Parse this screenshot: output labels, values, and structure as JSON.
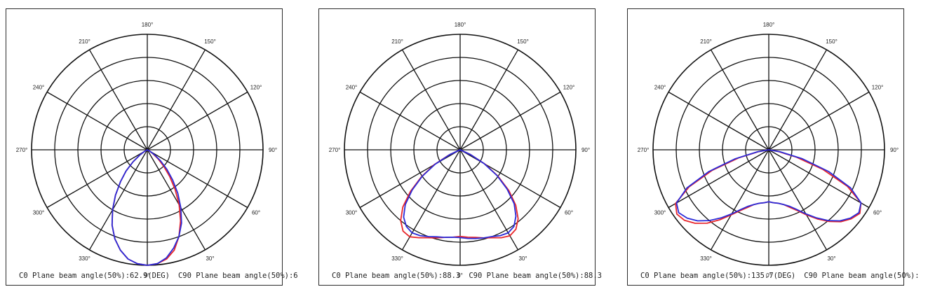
{
  "colors": {
    "c0": "#e8262b",
    "c90": "#2a2ad8",
    "grid": "#111111"
  },
  "angle_labels": [
    "0°",
    "30°",
    "60°",
    "90°",
    "120°",
    "150°",
    "180°",
    "210°",
    "240°",
    "270°",
    "300°",
    "330°"
  ],
  "charts": [
    {
      "caption_c0": "C0 Plane beam angle(50%):62.9(DEG)",
      "caption_c90": "C90 Plane beam angle(50%):6"
    },
    {
      "caption_c0": "C0 Plane beam angle(50%):88.3",
      "caption_c90": "C90 Plane beam angle(50%):88.3"
    },
    {
      "caption_c0": "C0 Plane beam angle(50%):135.7(DEG)",
      "caption_c90": "C90 Plane beam angle(50%):"
    }
  ],
  "chart_data": [
    {
      "type": "polar",
      "angle_ticks_deg": [
        0,
        30,
        60,
        90,
        120,
        150,
        180,
        210,
        240,
        270,
        300,
        330
      ],
      "rings": 5,
      "series": [
        {
          "id": "c0",
          "color": "#e8262b",
          "points": [
            [
              0,
              1.0
            ],
            [
              5,
              0.99
            ],
            [
              10,
              0.96
            ],
            [
              15,
              0.9
            ],
            [
              20,
              0.8
            ],
            [
              25,
              0.68
            ],
            [
              30,
              0.55
            ],
            [
              35,
              0.42
            ],
            [
              40,
              0.3
            ],
            [
              45,
              0.2
            ],
            [
              50,
              0.12
            ],
            [
              55,
              0.06
            ],
            [
              60,
              0.02
            ],
            [
              65,
              0.0
            ],
            [
              -5,
              0.99
            ],
            [
              -10,
              0.96
            ],
            [
              -15,
              0.9
            ],
            [
              -20,
              0.82
            ],
            [
              -25,
              0.72
            ],
            [
              -30,
              0.6
            ],
            [
              -35,
              0.48
            ],
            [
              -40,
              0.36
            ],
            [
              -45,
              0.26
            ],
            [
              -50,
              0.16
            ],
            [
              -55,
              0.08
            ],
            [
              -60,
              0.03
            ],
            [
              -65,
              0.0
            ]
          ]
        },
        {
          "id": "c90",
          "color": "#2a2ad8",
          "points": [
            [
              0,
              1.0
            ],
            [
              5,
              0.99
            ],
            [
              10,
              0.95
            ],
            [
              15,
              0.88
            ],
            [
              20,
              0.8
            ],
            [
              25,
              0.7
            ],
            [
              30,
              0.58
            ],
            [
              35,
              0.46
            ],
            [
              40,
              0.34
            ],
            [
              45,
              0.24
            ],
            [
              50,
              0.15
            ],
            [
              55,
              0.08
            ],
            [
              60,
              0.03
            ],
            [
              65,
              0.0
            ],
            [
              -5,
              0.99
            ],
            [
              -10,
              0.96
            ],
            [
              -15,
              0.9
            ],
            [
              -20,
              0.82
            ],
            [
              -25,
              0.72
            ],
            [
              -30,
              0.6
            ],
            [
              -35,
              0.48
            ],
            [
              -40,
              0.36
            ],
            [
              -45,
              0.26
            ],
            [
              -50,
              0.16
            ],
            [
              -55,
              0.08
            ],
            [
              -60,
              0.03
            ],
            [
              -65,
              0.0
            ]
          ]
        }
      ]
    },
    {
      "type": "polar",
      "angle_ticks_deg": [
        0,
        30,
        60,
        90,
        120,
        150,
        180,
        210,
        240,
        270,
        300,
        330
      ],
      "rings": 5,
      "series": [
        {
          "id": "c0",
          "color": "#e8262b",
          "points": [
            [
              0,
              0.75
            ],
            [
              5,
              0.76
            ],
            [
              10,
              0.77
            ],
            [
              15,
              0.79
            ],
            [
              20,
              0.81
            ],
            [
              25,
              0.84
            ],
            [
              30,
              0.86
            ],
            [
              35,
              0.84
            ],
            [
              40,
              0.78
            ],
            [
              45,
              0.68
            ],
            [
              50,
              0.55
            ],
            [
              55,
              0.4
            ],
            [
              60,
              0.25
            ],
            [
              65,
              0.1
            ],
            [
              70,
              0.0
            ],
            [
              -5,
              0.76
            ],
            [
              -10,
              0.77
            ],
            [
              -15,
              0.79
            ],
            [
              -20,
              0.81
            ],
            [
              -25,
              0.84
            ],
            [
              -30,
              0.87
            ],
            [
              -35,
              0.86
            ],
            [
              -40,
              0.8
            ],
            [
              -45,
              0.7
            ],
            [
              -50,
              0.56
            ],
            [
              -55,
              0.41
            ],
            [
              -60,
              0.26
            ],
            [
              -65,
              0.11
            ],
            [
              -70,
              0.0
            ]
          ]
        },
        {
          "id": "c90",
          "color": "#2a2ad8",
          "points": [
            [
              0,
              0.76
            ],
            [
              5,
              0.77
            ],
            [
              10,
              0.78
            ],
            [
              15,
              0.79
            ],
            [
              20,
              0.8
            ],
            [
              25,
              0.82
            ],
            [
              30,
              0.83
            ],
            [
              35,
              0.81
            ],
            [
              40,
              0.75
            ],
            [
              45,
              0.66
            ],
            [
              50,
              0.53
            ],
            [
              55,
              0.39
            ],
            [
              60,
              0.24
            ],
            [
              65,
              0.1
            ],
            [
              70,
              0.0
            ],
            [
              -5,
              0.76
            ],
            [
              -10,
              0.77
            ],
            [
              -15,
              0.78
            ],
            [
              -20,
              0.8
            ],
            [
              -25,
              0.82
            ],
            [
              -30,
              0.83
            ],
            [
              -35,
              0.81
            ],
            [
              -40,
              0.76
            ],
            [
              -45,
              0.67
            ],
            [
              -50,
              0.54
            ],
            [
              -55,
              0.4
            ],
            [
              -60,
              0.25
            ],
            [
              -65,
              0.1
            ],
            [
              -70,
              0.0
            ]
          ]
        }
      ]
    },
    {
      "type": "polar",
      "angle_ticks_deg": [
        0,
        30,
        60,
        90,
        120,
        150,
        180,
        210,
        240,
        270,
        300,
        330
      ],
      "rings": 5,
      "series": [
        {
          "id": "c0",
          "color": "#e8262b",
          "points": [
            [
              0,
              0.45
            ],
            [
              5,
              0.46
            ],
            [
              10,
              0.47
            ],
            [
              15,
              0.49
            ],
            [
              20,
              0.53
            ],
            [
              25,
              0.58
            ],
            [
              30,
              0.65
            ],
            [
              35,
              0.73
            ],
            [
              40,
              0.81
            ],
            [
              45,
              0.88
            ],
            [
              50,
              0.93
            ],
            [
              55,
              0.96
            ],
            [
              60,
              0.92
            ],
            [
              65,
              0.75
            ],
            [
              70,
              0.5
            ],
            [
              75,
              0.25
            ],
            [
              80,
              0.08
            ],
            [
              85,
              0.0
            ],
            [
              -5,
              0.46
            ],
            [
              -10,
              0.47
            ],
            [
              -15,
              0.49
            ],
            [
              -20,
              0.53
            ],
            [
              -25,
              0.58
            ],
            [
              -30,
              0.65
            ],
            [
              -35,
              0.74
            ],
            [
              -40,
              0.83
            ],
            [
              -45,
              0.9
            ],
            [
              -50,
              0.95
            ],
            [
              -55,
              0.97
            ],
            [
              -60,
              0.93
            ],
            [
              -65,
              0.76
            ],
            [
              -70,
              0.52
            ],
            [
              -75,
              0.27
            ],
            [
              -80,
              0.09
            ],
            [
              -85,
              0.0
            ]
          ]
        },
        {
          "id": "c90",
          "color": "#2a2ad8",
          "points": [
            [
              0,
              0.45
            ],
            [
              5,
              0.46
            ],
            [
              10,
              0.47
            ],
            [
              15,
              0.49
            ],
            [
              20,
              0.52
            ],
            [
              25,
              0.57
            ],
            [
              30,
              0.64
            ],
            [
              35,
              0.72
            ],
            [
              40,
              0.8
            ],
            [
              45,
              0.87
            ],
            [
              50,
              0.92
            ],
            [
              55,
              0.95
            ],
            [
              60,
              0.92
            ],
            [
              65,
              0.78
            ],
            [
              70,
              0.55
            ],
            [
              75,
              0.3
            ],
            [
              80,
              0.1
            ],
            [
              85,
              0.0
            ],
            [
              -5,
              0.46
            ],
            [
              -10,
              0.47
            ],
            [
              -15,
              0.49
            ],
            [
              -20,
              0.52
            ],
            [
              -25,
              0.57
            ],
            [
              -30,
              0.64
            ],
            [
              -35,
              0.72
            ],
            [
              -40,
              0.8
            ],
            [
              -45,
              0.87
            ],
            [
              -50,
              0.92
            ],
            [
              -55,
              0.95
            ],
            [
              -60,
              0.92
            ],
            [
              -65,
              0.78
            ],
            [
              -70,
              0.55
            ],
            [
              -75,
              0.3
            ],
            [
              -80,
              0.1
            ],
            [
              -85,
              0.0
            ]
          ]
        }
      ]
    }
  ]
}
